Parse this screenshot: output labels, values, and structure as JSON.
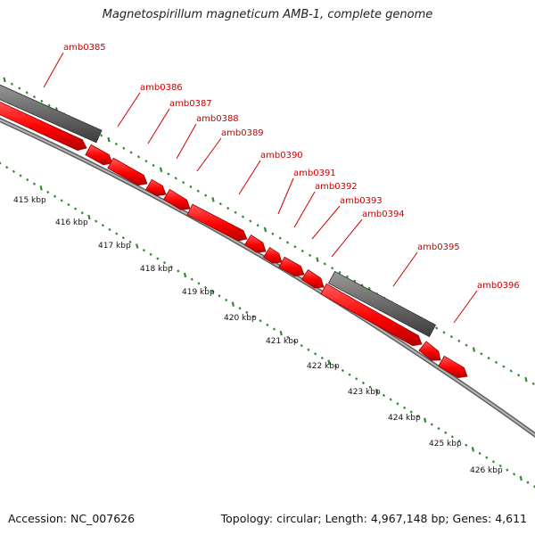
{
  "title": "Magnetospirillum magneticum AMB-1, complete genome",
  "footer": {
    "accession": "Accession: NC_007626",
    "topology": "Topology: circular; Length: 4,967,148 bp; Genes: 4,611"
  },
  "colors": {
    "gene_fill": "#ff0000",
    "gene_edge": "#9a0000",
    "gray_feature": "#6e6e6e",
    "backbone": "#8a8a8a",
    "tick": "#2e8b2e",
    "label": "#cc0000"
  },
  "gene_labels": [
    "amb0385",
    "amb0386",
    "amb0387",
    "amb0388",
    "amb0389",
    "amb0390",
    "amb0391",
    "amb0392",
    "amb0393",
    "amb0394",
    "amb0395",
    "amb0396"
  ],
  "kbp_labels": [
    "415 kbp",
    "416 kbp",
    "417 kbp",
    "418 kbp",
    "419 kbp",
    "420 kbp",
    "421 kbp",
    "422 kbp",
    "423 kbp",
    "424 kbp",
    "425 kbp",
    "426 kbp"
  ]
}
